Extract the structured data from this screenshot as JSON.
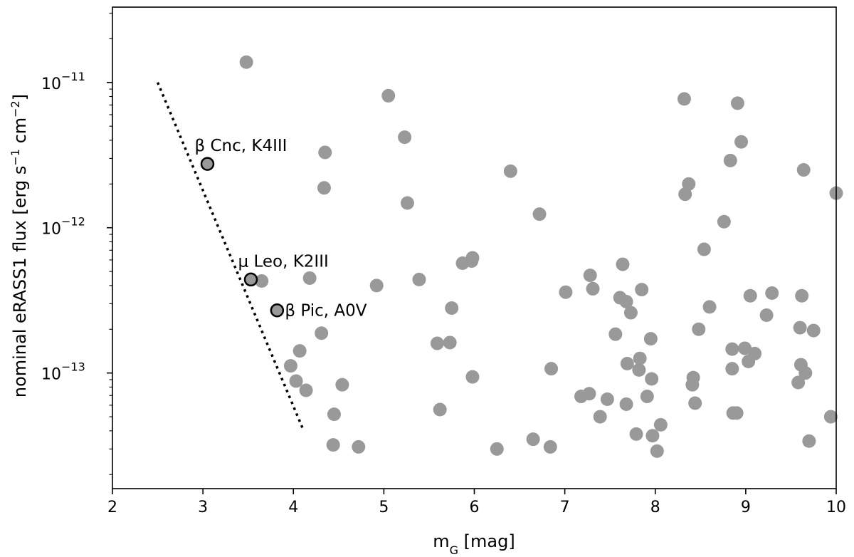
{
  "chart_data": {
    "type": "scatter",
    "title": "",
    "xlabel": "m_G [mag]",
    "xlabel_parts": {
      "base": "m",
      "sub": "G",
      "rest": " [mag]"
    },
    "ylabel": "nominal eRASS1 flux [erg s⁻¹ cm⁻²]",
    "ylabel_parts": {
      "a": "nominal eRASS1 flux [erg s",
      "sup1": "−1",
      "b": " cm",
      "sup2": "−2",
      "c": "]"
    },
    "xlim": [
      2,
      10
    ],
    "ylim": [
      1.6e-14,
      3.3e-11
    ],
    "yscale": "log",
    "grid": false,
    "xticks": [
      2,
      3,
      4,
      5,
      6,
      7,
      8,
      9,
      10
    ],
    "xtick_labels": [
      "2",
      "3",
      "4",
      "5",
      "6",
      "7",
      "8",
      "9",
      "10"
    ],
    "yticks": [
      {
        "value": 1e-13,
        "base": "10",
        "exp": "−13"
      },
      {
        "value": 1e-12,
        "base": "10",
        "exp": "−12"
      },
      {
        "value": 1e-11,
        "base": "10",
        "exp": "−11"
      }
    ],
    "limit_line": {
      "style": "dotted",
      "points": [
        [
          2.5,
          1e-11
        ],
        [
          4.1,
          4.2e-14
        ]
      ]
    },
    "highlighted": [
      {
        "name": "beta-cnc",
        "label": "β Cnc, K4III",
        "x": 3.05,
        "y": 2.75e-12
      },
      {
        "name": "mu-leo",
        "label": "μ Leo, K2III",
        "x": 3.53,
        "y": 4.4e-13
      },
      {
        "name": "beta-pic",
        "label": "β Pic, A0V",
        "x": 3.82,
        "y": 2.7e-13
      }
    ],
    "points": [
      [
        3.48,
        1.38e-11
      ],
      [
        4.35,
        3.3e-12
      ],
      [
        4.34,
        1.88e-12
      ],
      [
        3.65,
        4.3e-13
      ],
      [
        4.18,
        4.5e-13
      ],
      [
        4.31,
        1.88e-13
      ],
      [
        4.07,
        1.42e-13
      ],
      [
        3.97,
        1.12e-13
      ],
      [
        4.03,
        8.8e-14
      ],
      [
        4.14,
        7.6e-14
      ],
      [
        4.45,
        5.2e-14
      ],
      [
        4.44,
        3.2e-14
      ],
      [
        4.72,
        3.1e-14
      ],
      [
        4.54,
        8.3e-14
      ],
      [
        4.92,
        4e-13
      ],
      [
        5.05,
        8.1e-12
      ],
      [
        5.23,
        4.2e-12
      ],
      [
        5.26,
        1.48e-12
      ],
      [
        5.39,
        4.4e-13
      ],
      [
        5.59,
        1.6e-13
      ],
      [
        5.73,
        1.62e-13
      ],
      [
        5.75,
        2.8e-13
      ],
      [
        5.87,
        5.7e-13
      ],
      [
        5.97,
        5.9e-13
      ],
      [
        5.98,
        6.2e-13
      ],
      [
        5.98,
        9.4e-14
      ],
      [
        5.62,
        5.6e-14
      ],
      [
        6.25,
        3e-14
      ],
      [
        6.4,
        2.45e-12
      ],
      [
        6.65,
        3.5e-14
      ],
      [
        6.72,
        1.24e-12
      ],
      [
        6.84,
        3.1e-14
      ],
      [
        6.85,
        1.07e-13
      ],
      [
        7.01,
        3.6e-13
      ],
      [
        7.18,
        6.9e-14
      ],
      [
        7.27,
        7.2e-14
      ],
      [
        7.28,
        4.7e-13
      ],
      [
        7.31,
        3.8e-13
      ],
      [
        7.39,
        5e-14
      ],
      [
        7.47,
        6.6e-14
      ],
      [
        7.56,
        1.85e-13
      ],
      [
        7.61,
        3.3e-13
      ],
      [
        7.64,
        5.6e-13
      ],
      [
        7.68,
        3.1e-13
      ],
      [
        7.68,
        6.1e-14
      ],
      [
        7.69,
        1.16e-13
      ],
      [
        7.73,
        2.6e-13
      ],
      [
        7.79,
        3.8e-14
      ],
      [
        7.82,
        1.05e-13
      ],
      [
        7.83,
        1.26e-13
      ],
      [
        7.85,
        3.75e-13
      ],
      [
        7.91,
        6.9e-14
      ],
      [
        7.95,
        1.72e-13
      ],
      [
        7.96,
        9.1e-14
      ],
      [
        7.97,
        3.7e-14
      ],
      [
        8.02,
        2.9e-14
      ],
      [
        8.06,
        4.4e-14
      ],
      [
        8.32,
        7.7e-12
      ],
      [
        8.33,
        1.7e-12
      ],
      [
        8.37,
        2e-12
      ],
      [
        8.41,
        8.3e-14
      ],
      [
        8.42,
        9.3e-14
      ],
      [
        8.44,
        6.2e-14
      ],
      [
        8.48,
        2e-13
      ],
      [
        8.54,
        7.1e-13
      ],
      [
        8.6,
        2.85e-13
      ],
      [
        8.76,
        1.1e-12
      ],
      [
        8.83,
        2.9e-12
      ],
      [
        8.85,
        1.46e-13
      ],
      [
        8.85,
        1.07e-13
      ],
      [
        8.86,
        5.3e-14
      ],
      [
        8.9,
        5.3e-14
      ],
      [
        8.91,
        7.2e-12
      ],
      [
        8.95,
        3.9e-12
      ],
      [
        8.99,
        1.48e-13
      ],
      [
        9.03,
        1.2e-13
      ],
      [
        9.05,
        3.4e-13
      ],
      [
        9.1,
        1.36e-13
      ],
      [
        9.23,
        2.5e-13
      ],
      [
        9.29,
        3.55e-13
      ],
      [
        9.58,
        8.6e-14
      ],
      [
        9.6,
        2.05e-13
      ],
      [
        9.61,
        1.14e-13
      ],
      [
        9.62,
        3.4e-13
      ],
      [
        9.64,
        2.5e-12
      ],
      [
        9.66,
        1e-13
      ],
      [
        9.7,
        3.4e-14
      ],
      [
        9.75,
        1.96e-13
      ],
      [
        9.94,
        5e-14
      ],
      [
        10.0,
        1.73e-12
      ]
    ]
  }
}
